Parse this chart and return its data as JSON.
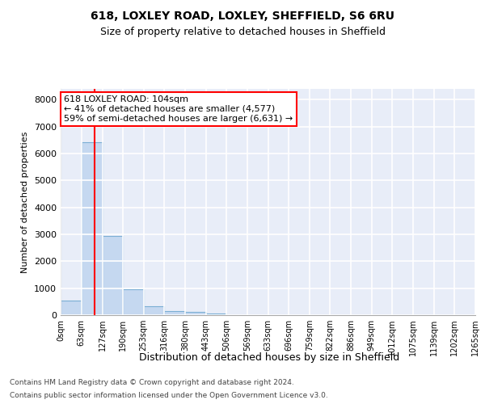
{
  "title": "618, LOXLEY ROAD, LOXLEY, SHEFFIELD, S6 6RU",
  "subtitle": "Size of property relative to detached houses in Sheffield",
  "xlabel": "Distribution of detached houses by size in Sheffield",
  "ylabel": "Number of detached properties",
  "bar_color": "#c5d8f0",
  "bar_edge_color": "#7bafd4",
  "background_color": "#e8edf8",
  "grid_color": "#ffffff",
  "property_size": 104,
  "annotation_line1": "618 LOXLEY ROAD: 104sqm",
  "annotation_line2": "← 41% of detached houses are smaller (4,577)",
  "annotation_line3": "59% of semi-detached houses are larger (6,631) →",
  "footer1": "Contains HM Land Registry data © Crown copyright and database right 2024.",
  "footer2": "Contains public sector information licensed under the Open Government Licence v3.0.",
  "bin_edges": [
    0,
    63,
    127,
    190,
    253,
    316,
    380,
    443,
    506,
    569,
    633,
    696,
    759,
    822,
    886,
    949,
    1012,
    1075,
    1139,
    1202,
    1265
  ],
  "bin_labels": [
    "0sqm",
    "63sqm",
    "127sqm",
    "190sqm",
    "253sqm",
    "316sqm",
    "380sqm",
    "443sqm",
    "506sqm",
    "569sqm",
    "633sqm",
    "696sqm",
    "759sqm",
    "822sqm",
    "886sqm",
    "949sqm",
    "1012sqm",
    "1075sqm",
    "1139sqm",
    "1202sqm",
    "1265sqm"
  ],
  "bar_heights": [
    550,
    6420,
    2930,
    970,
    340,
    160,
    110,
    70,
    0,
    0,
    0,
    0,
    0,
    0,
    0,
    0,
    0,
    0,
    0,
    0
  ],
  "ylim": [
    0,
    8400
  ],
  "yticks": [
    0,
    1000,
    2000,
    3000,
    4000,
    5000,
    6000,
    7000,
    8000
  ]
}
